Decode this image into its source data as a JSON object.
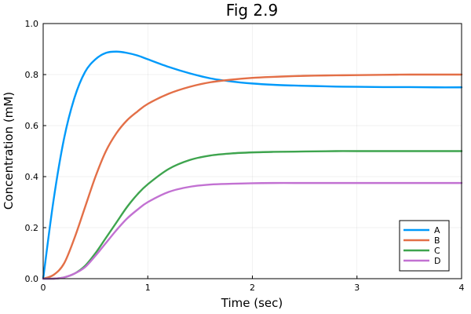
{
  "chart_data": {
    "type": "line",
    "title": "Fig 2.9",
    "xlabel": "Time (sec)",
    "ylabel": "Concentration (mM)",
    "xlim": [
      0,
      4
    ],
    "ylim": [
      0,
      1.0
    ],
    "x_ticks": [
      0,
      1,
      2,
      3,
      4
    ],
    "x_tick_labels": [
      "0",
      "1",
      "2",
      "3",
      "4"
    ],
    "y_ticks": [
      0,
      0.2,
      0.4,
      0.6,
      0.8,
      1.0
    ],
    "y_tick_labels": [
      "0.0",
      "0.2",
      "0.4",
      "0.6",
      "0.8",
      "1.0"
    ],
    "grid": true,
    "legend_position": "bottom-right",
    "x": [
      0,
      0.1,
      0.2,
      0.3,
      0.4,
      0.5,
      0.6,
      0.7,
      0.8,
      0.9,
      1.0,
      1.2,
      1.4,
      1.6,
      1.8,
      2.0,
      2.2,
      2.4,
      2.6,
      2.8,
      3.0,
      3.25,
      3.5,
      3.75,
      4.0
    ],
    "series": [
      {
        "name": "A",
        "color": "#009AFA",
        "values": [
          0.0,
          0.31,
          0.55,
          0.71,
          0.81,
          0.86,
          0.885,
          0.89,
          0.885,
          0.875,
          0.86,
          0.83,
          0.805,
          0.785,
          0.773,
          0.765,
          0.76,
          0.757,
          0.755,
          0.753,
          0.752,
          0.751,
          0.751,
          0.75,
          0.75
        ]
      },
      {
        "name": "B",
        "color": "#E36F47",
        "values": [
          0.0,
          0.015,
          0.06,
          0.16,
          0.28,
          0.4,
          0.5,
          0.57,
          0.62,
          0.655,
          0.685,
          0.725,
          0.752,
          0.77,
          0.78,
          0.787,
          0.791,
          0.794,
          0.796,
          0.797,
          0.798,
          0.799,
          0.8,
          0.8,
          0.8
        ]
      },
      {
        "name": "C",
        "color": "#3EA44E",
        "values": [
          0.0,
          0.0,
          0.005,
          0.02,
          0.05,
          0.1,
          0.16,
          0.22,
          0.28,
          0.33,
          0.37,
          0.43,
          0.465,
          0.483,
          0.491,
          0.495,
          0.497,
          0.498,
          0.499,
          0.5,
          0.5,
          0.5,
          0.5,
          0.5,
          0.5
        ]
      },
      {
        "name": "D",
        "color": "#C271D2",
        "values": [
          0.0,
          0.0,
          0.005,
          0.02,
          0.045,
          0.09,
          0.14,
          0.19,
          0.235,
          0.27,
          0.3,
          0.34,
          0.36,
          0.369,
          0.372,
          0.374,
          0.375,
          0.375,
          0.375,
          0.375,
          0.375,
          0.375,
          0.375,
          0.375,
          0.375
        ]
      }
    ]
  }
}
